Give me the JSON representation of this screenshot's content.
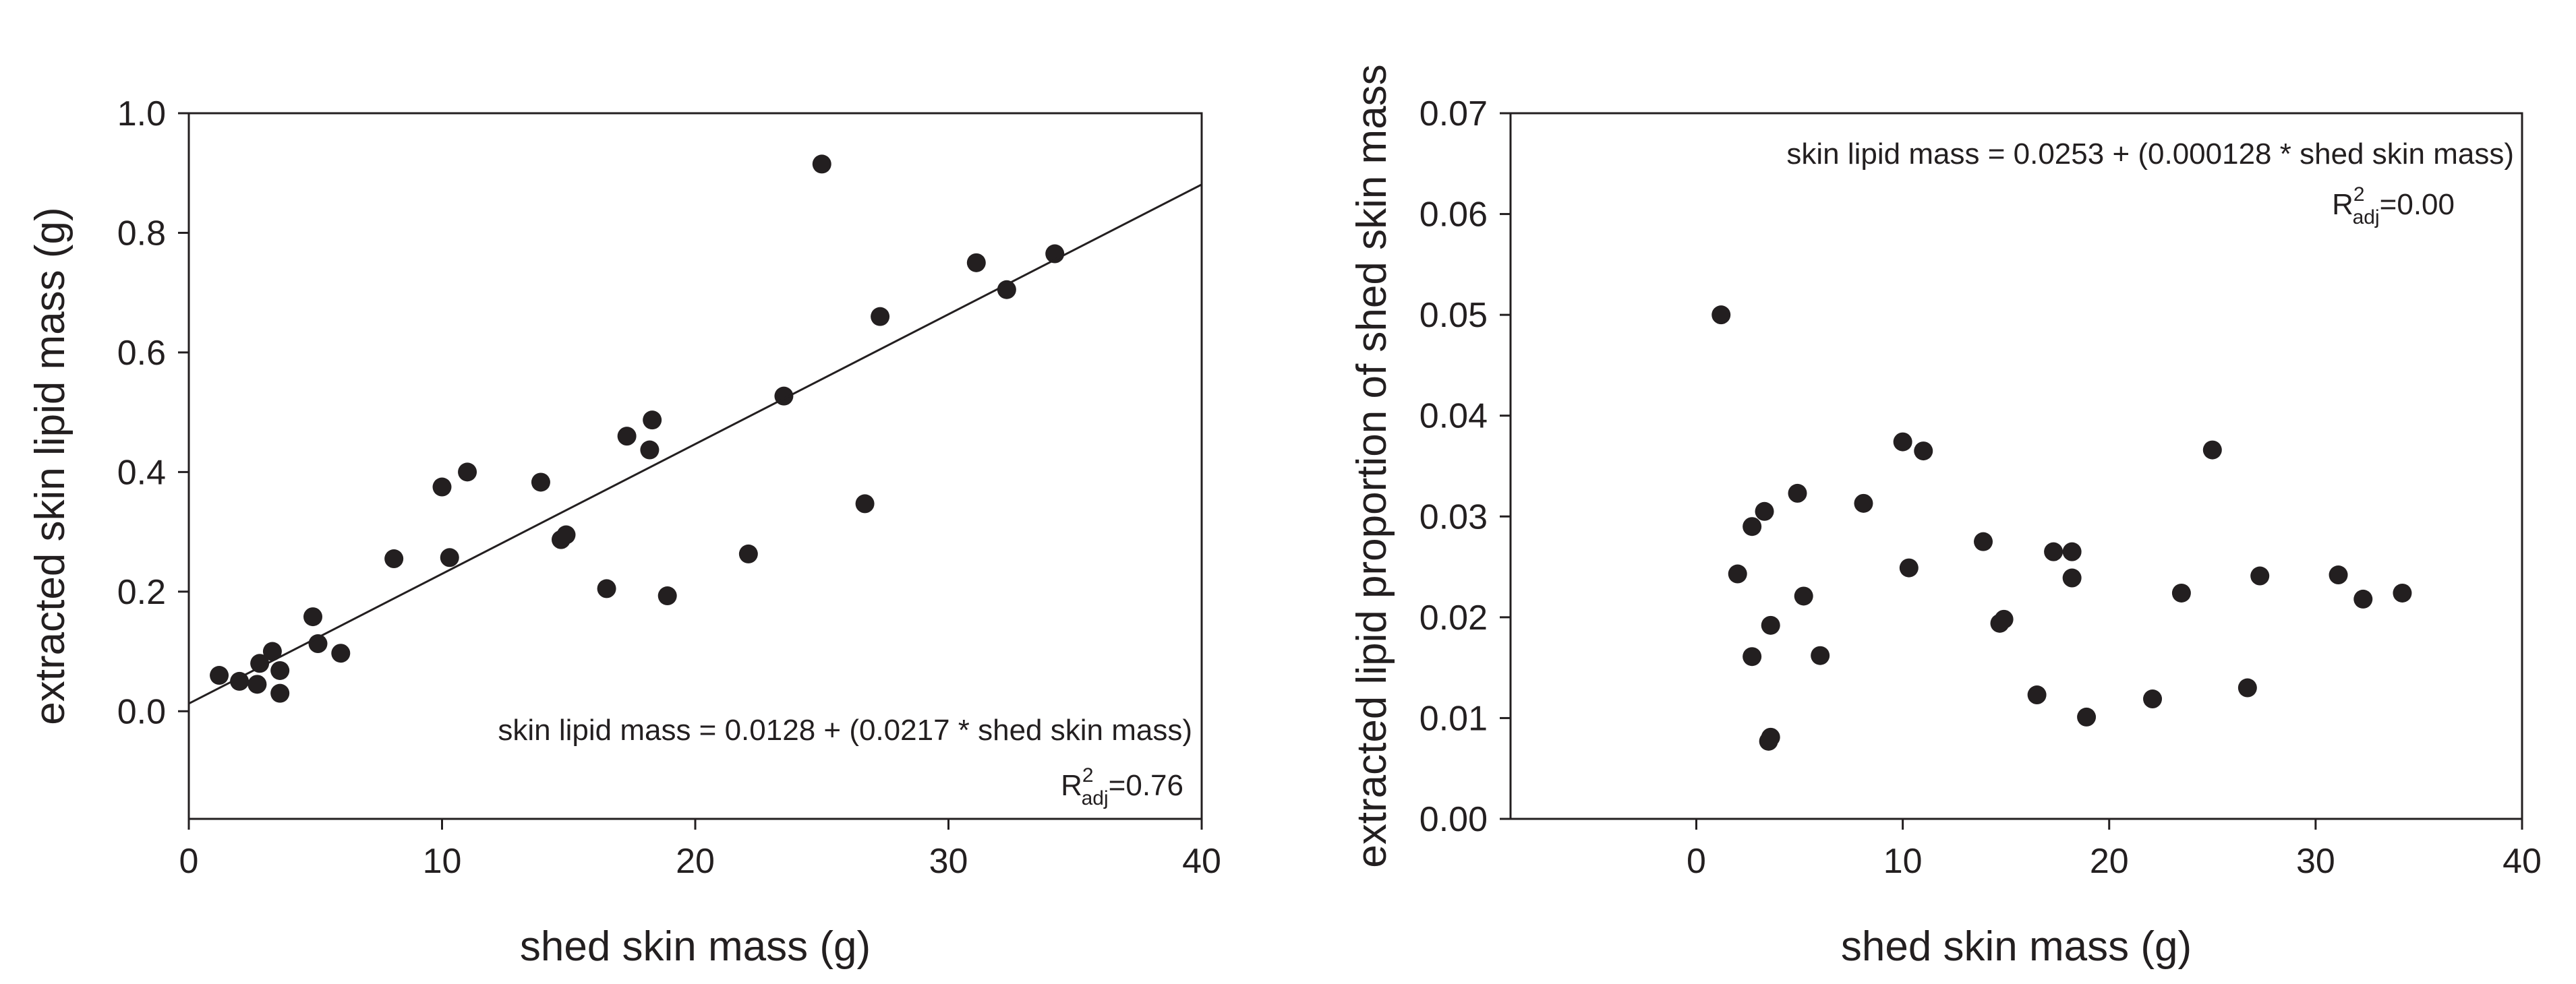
{
  "chart_data": [
    {
      "type": "scatter",
      "xlabel": "shed skin mass (g)",
      "ylabel": "extracted skin lipid mass (g)",
      "xlim": [
        0,
        40
      ],
      "ylim": [
        -0.18,
        1.0
      ],
      "xticks": [
        0,
        10,
        20,
        30,
        40
      ],
      "xtick_labels": [
        "0",
        "10",
        "20",
        "30",
        "40"
      ],
      "yticks": [
        0.0,
        0.2,
        0.4,
        0.6,
        0.8,
        1.0
      ],
      "ytick_labels": [
        "0.0",
        "0.2",
        "0.4",
        "0.6",
        "0.8",
        "1.0"
      ],
      "fit_line": {
        "intercept": 0.0128,
        "slope": 0.0217
      },
      "equation": "skin lipid mass = 0.0128 + (0.0217 * shed skin mass)",
      "r2_base": "R",
      "r2_sup": "2",
      "r2_sub": "adj",
      "r2_value": "=0.76",
      "points": [
        [
          1.2,
          0.06
        ],
        [
          2.0,
          0.05
        ],
        [
          2.7,
          0.045
        ],
        [
          2.8,
          0.08
        ],
        [
          3.3,
          0.1
        ],
        [
          3.6,
          0.03
        ],
        [
          3.6,
          0.068
        ],
        [
          4.9,
          0.158
        ],
        [
          5.1,
          0.113
        ],
        [
          6.0,
          0.097
        ],
        [
          8.1,
          0.255
        ],
        [
          10.0,
          0.375
        ],
        [
          10.3,
          0.257
        ],
        [
          11.0,
          0.4
        ],
        [
          13.9,
          0.383
        ],
        [
          14.7,
          0.287
        ],
        [
          14.9,
          0.295
        ],
        [
          16.5,
          0.205
        ],
        [
          17.3,
          0.46
        ],
        [
          18.2,
          0.437
        ],
        [
          18.3,
          0.487
        ],
        [
          18.9,
          0.193
        ],
        [
          22.1,
          0.263
        ],
        [
          23.5,
          0.527
        ],
        [
          25.0,
          0.915
        ],
        [
          26.7,
          0.347
        ],
        [
          27.3,
          0.66
        ],
        [
          31.1,
          0.75
        ],
        [
          32.3,
          0.705
        ],
        [
          34.2,
          0.765
        ]
      ]
    },
    {
      "type": "scatter",
      "xlabel": "shed skin mass (g)",
      "ylabel": "extracted lipid proportion of shed skin mass",
      "xlim": [
        -9,
        40
      ],
      "ylim": [
        0,
        0.07
      ],
      "xticks": [
        0,
        10,
        20,
        30,
        40
      ],
      "xtick_labels": [
        "0",
        "10",
        "20",
        "30",
        "40"
      ],
      "yticks": [
        0,
        0.01,
        0.02,
        0.03,
        0.04,
        0.05,
        0.06,
        0.07
      ],
      "ytick_labels": [
        "0.00",
        "0.01",
        "0.02",
        "0.03",
        "0.04",
        "0.05",
        "0.06",
        "0.07"
      ],
      "equation": "skin lipid mass = 0.0253 + (0.000128 * shed skin mass)",
      "r2_base": "R",
      "r2_sup": "2",
      "r2_sub": "adj",
      "r2_value": "=0.00",
      "points": [
        [
          1.2,
          0.05
        ],
        [
          2.0,
          0.0243
        ],
        [
          2.7,
          0.029
        ],
        [
          2.7,
          0.0161
        ],
        [
          3.3,
          0.0305
        ],
        [
          3.6,
          0.0192
        ],
        [
          3.5,
          0.0077
        ],
        [
          3.6,
          0.0081
        ],
        [
          4.9,
          0.0323
        ],
        [
          5.2,
          0.0221
        ],
        [
          6.0,
          0.0162
        ],
        [
          8.1,
          0.0313
        ],
        [
          10.0,
          0.0374
        ],
        [
          10.3,
          0.0249
        ],
        [
          11.0,
          0.0365
        ],
        [
          13.9,
          0.0275
        ],
        [
          14.7,
          0.0194
        ],
        [
          14.9,
          0.0198
        ],
        [
          16.5,
          0.0123
        ],
        [
          17.3,
          0.0265
        ],
        [
          18.2,
          0.0265
        ],
        [
          18.2,
          0.0239
        ],
        [
          18.9,
          0.0101
        ],
        [
          22.1,
          0.0119
        ],
        [
          23.5,
          0.0224
        ],
        [
          25.0,
          0.0366
        ],
        [
          26.7,
          0.013
        ],
        [
          27.3,
          0.0241
        ],
        [
          31.1,
          0.0242
        ],
        [
          32.3,
          0.0218
        ],
        [
          34.2,
          0.0224
        ]
      ]
    }
  ]
}
